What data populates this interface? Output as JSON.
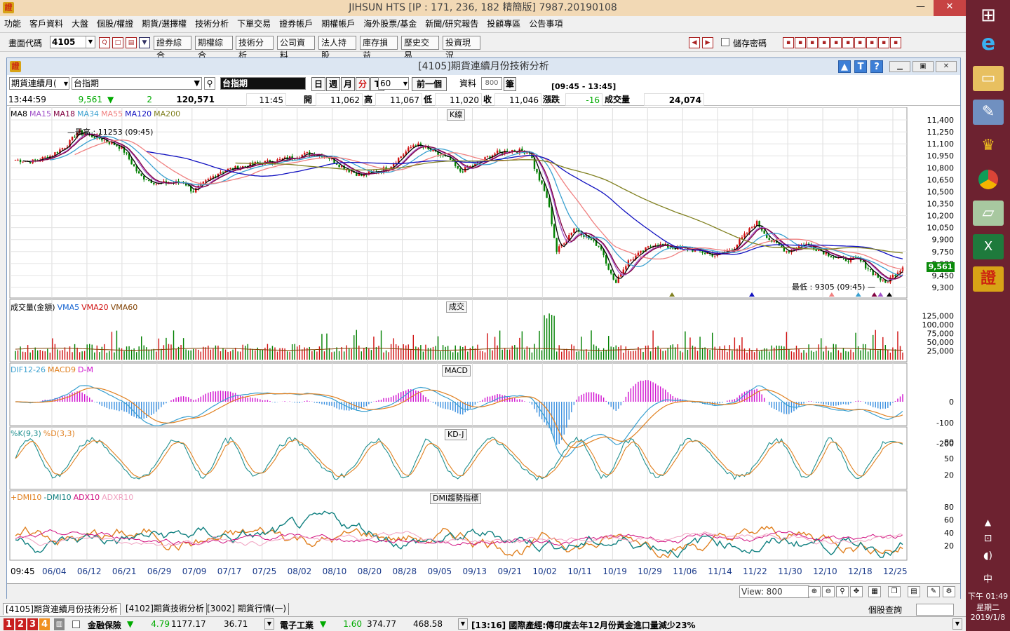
{
  "window": {
    "title": "JIHSUN HTS     [IP : 171, 236, 182 精簡版] 7987.20190108",
    "logo_text": "證",
    "controls": {
      "minimize": "—",
      "restore": "❐",
      "close": "✕"
    }
  },
  "menu": [
    "功能",
    "客戶資料",
    "大盤",
    "個股/權證",
    "期貨/選擇權",
    "技術分析",
    "下單交易",
    "證券帳戶",
    "期權帳戶",
    "海外股票/基金",
    "新聞/研究報告",
    "投顧專區",
    "公告事項"
  ],
  "toolbar": {
    "code_label": "畫面代碼",
    "code_value": "4105",
    "buttons": [
      "證券綜合",
      "期權綜合",
      "技術分析",
      "公司資料",
      "法人持股",
      "庫存損益",
      "歷史交易",
      "投資現況"
    ],
    "save_password_label": "儲存密碼"
  },
  "chart_window": {
    "title": "[4105]期貨連續月份技術分析",
    "help_icons": [
      "▲",
      "T",
      "?"
    ],
    "controls": {
      "minimize": "▁",
      "restore": "▣",
      "close": "✕"
    },
    "product_select": "期貨連續月(",
    "product_name": "台指期",
    "product_display": "台指期",
    "period_buttons": [
      "日",
      "週",
      "月",
      "分",
      "T"
    ],
    "active_period": "分",
    "interval_select": "60",
    "prev_label": "前一個",
    "data_label": "資料",
    "data_count": "800",
    "data_unit": "筆",
    "session": "[09:45 - 13:45]"
  },
  "quote": {
    "time": "13:44:59",
    "price": "9,561",
    "change_arrow": "▼",
    "change": "2",
    "volume_total": "120,571",
    "bar_time": "11:45",
    "open_label": "開",
    "open": "11,062",
    "high_label": "高",
    "high": "11,067",
    "low_label": "低",
    "low": "11,020",
    "close_label": "收",
    "close": "11,046",
    "chg_label": "漲跌",
    "chg": "-16",
    "vol_label": "成交量",
    "vol": "24,074"
  },
  "panels": {
    "kline": {
      "title": "K線",
      "legend": [
        {
          "name": "MA8",
          "color": "#000000"
        },
        {
          "name": "MA15",
          "color": "#a050c8"
        },
        {
          "name": "MA18",
          "color": "#800040"
        },
        {
          "name": "MA34",
          "color": "#3aa0d0"
        },
        {
          "name": "MA55",
          "color": "#f08080"
        },
        {
          "name": "MA120",
          "color": "#1010c0"
        },
        {
          "name": "MA200",
          "color": "#808020"
        }
      ],
      "high_note": "最高 : 11253 (09:45)",
      "low_note": "最低 : 9305 (09:45)",
      "last_price_tag": "9,561",
      "y_ticks": [
        "11,400",
        "11,250",
        "11,100",
        "10,950",
        "10,800",
        "10,650",
        "10,500",
        "10,350",
        "10,200",
        "10,050",
        "9,900",
        "9,750",
        "9,600",
        "9,450",
        "9,300"
      ]
    },
    "volume": {
      "title": "成交",
      "legend": [
        {
          "name": "成交量(金額)",
          "color": "#000000"
        },
        {
          "name": "VMA5",
          "color": "#1060d0"
        },
        {
          "name": "VMA20",
          "color": "#d01010"
        },
        {
          "name": "VMA60",
          "color": "#804000"
        }
      ],
      "y_ticks": [
        "125,000",
        "100,000",
        "75,000",
        "50,000",
        "25,000"
      ]
    },
    "macd": {
      "title": "MACD",
      "legend": [
        {
          "name": "DIF12-26",
          "color": "#3aa0d0"
        },
        {
          "name": "MACD9",
          "color": "#e08020"
        },
        {
          "name": "D-M",
          "color": "#d010d0"
        }
      ],
      "y_ticks": [
        "0",
        "-100",
        "-200"
      ]
    },
    "kd": {
      "title": "KD-J",
      "legend": [
        {
          "name": "%K(9,3)",
          "color": "#209090"
        },
        {
          "name": "%D(3,3)",
          "color": "#e08020"
        }
      ],
      "y_ticks": [
        "80",
        "50",
        "20"
      ]
    },
    "dmi": {
      "title": "DMI趨勢指標",
      "legend": [
        {
          "name": "+DMI10",
          "color": "#e08020"
        },
        {
          "name": "-DMI10",
          "color": "#108080"
        },
        {
          "name": "ADX10",
          "color": "#d01080"
        },
        {
          "name": "ADXR10",
          "color": "#f0a0c0"
        }
      ],
      "y_ticks": [
        "80",
        "60",
        "40",
        "20"
      ]
    }
  },
  "x_axis": [
    "09:45",
    "06/04",
    "06/12",
    "06/21",
    "06/29",
    "07/09",
    "07/17",
    "07/25",
    "08/02",
    "08/10",
    "08/20",
    "08/28",
    "09/05",
    "09/13",
    "09/21",
    "10/02",
    "10/11",
    "10/19",
    "10/29",
    "11/06",
    "11/14",
    "11/22",
    "11/30",
    "12/10",
    "12/18",
    "12/25"
  ],
  "view_label": "View: 800",
  "tabs": [
    "[4105]期貨連續月份技術分析",
    "[4102]期貨技術分析",
    "[3002] 期貨行情(一)"
  ],
  "stock_query_label": "個股查詢",
  "status": {
    "number_buttons": [
      "1",
      "2",
      "3",
      "4"
    ],
    "sector1_name": "金融保險",
    "sector1_arrow": "▼",
    "sector1_change": "4.79",
    "sector1_index": "1177.17",
    "sector1_amount": "36.71",
    "sector2_name": "電子工業",
    "sector2_arrow": "▼",
    "sector2_change": "1.60",
    "sector2_index": "374.77",
    "sector2_amount": "468.58",
    "news": "[13:16] 國際產經:傳印度去年12月份黃金進口量減少23%"
  },
  "taskbar": {
    "time": "下午 01:49",
    "weekday": "星期二",
    "date": "2019/1/8",
    "ime": "中"
  }
}
